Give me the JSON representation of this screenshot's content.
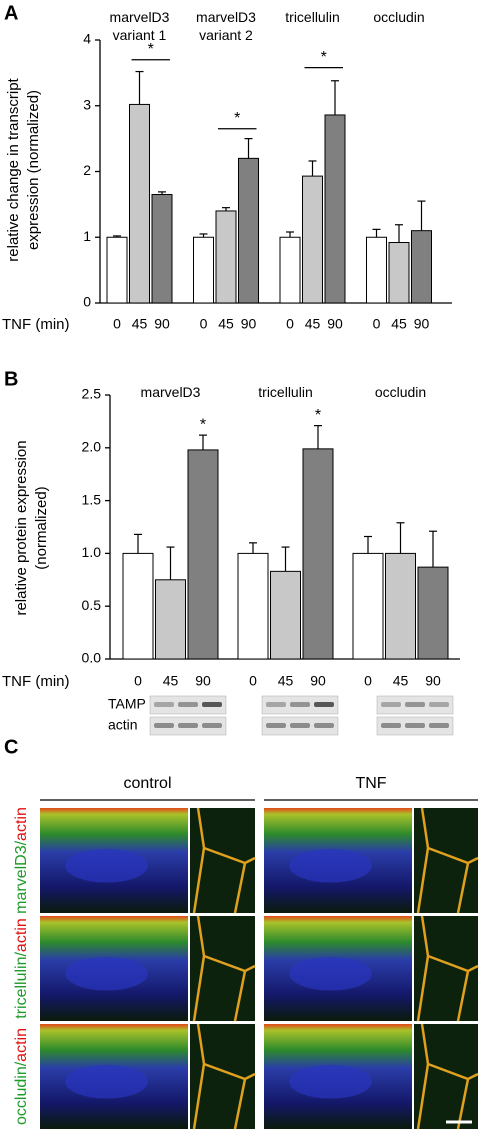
{
  "chart_data": [
    {
      "type": "bar",
      "panel": "A",
      "categories": [
        "marvelD3 variant 1",
        "marvelD3 variant 2",
        "tricellulin",
        "occludin"
      ],
      "x_label": "TNF (min)",
      "y_label": [
        "relative change in transcript",
        "expression (normalized)"
      ],
      "series": [
        {
          "name": "0",
          "color": "#ffffff",
          "values": [
            1.0,
            1.0,
            1.0,
            1.0
          ],
          "errors": [
            0.02,
            0.05,
            0.08,
            0.12
          ]
        },
        {
          "name": "45",
          "color": "#c8c8c8",
          "values": [
            3.02,
            1.4,
            1.93,
            0.92
          ],
          "errors": [
            0.5,
            0.05,
            0.23,
            0.27
          ]
        },
        {
          "name": "90",
          "color": "#808080",
          "values": [
            1.65,
            2.2,
            2.86,
            1.1
          ],
          "errors": [
            0.04,
            0.3,
            0.52,
            0.45
          ]
        }
      ],
      "significance": [
        "*",
        "*",
        "*",
        null
      ],
      "significance_y": [
        3.7,
        2.65,
        3.58,
        null
      ],
      "ylim": [
        0,
        4
      ],
      "yticks": [
        0,
        1,
        2,
        3,
        4
      ]
    },
    {
      "type": "bar",
      "panel": "B",
      "categories": [
        "marvelD3",
        "tricellulin",
        "occludin"
      ],
      "x_label": "TNF (min)",
      "y_label": [
        "relative protein expression",
        "(normalized)"
      ],
      "series": [
        {
          "name": "0",
          "color": "#ffffff",
          "values": [
            1.0,
            1.0,
            1.0
          ],
          "errors": [
            0.18,
            0.1,
            0.16
          ]
        },
        {
          "name": "45",
          "color": "#c8c8c8",
          "values": [
            0.75,
            0.83,
            1.0
          ],
          "errors": [
            0.31,
            0.23,
            0.29
          ]
        },
        {
          "name": "90",
          "color": "#808080",
          "values": [
            1.98,
            1.99,
            0.87
          ],
          "errors": [
            0.14,
            0.22,
            0.34
          ]
        }
      ],
      "significance": [
        "*",
        "*",
        null
      ],
      "ylim": [
        0,
        2.5
      ],
      "yticks": [
        {
          "value": 0,
          "label": "0.0"
        },
        0.5,
        {
          "value": 1,
          "label": "1.0"
        },
        1.5,
        {
          "value": 2,
          "label": "2.0"
        },
        2.5
      ],
      "blot_labels": [
        "TAMP",
        "actin"
      ]
    }
  ],
  "panel_c": {
    "panel": "C",
    "columns": [
      "control",
      "TNF"
    ],
    "rows": [
      {
        "protein": "marvelD3/",
        "stain": "actin"
      },
      {
        "protein": "tricellulin/",
        "stain": "actin"
      },
      {
        "protein": "occludin/",
        "stain": "actin"
      }
    ]
  }
}
